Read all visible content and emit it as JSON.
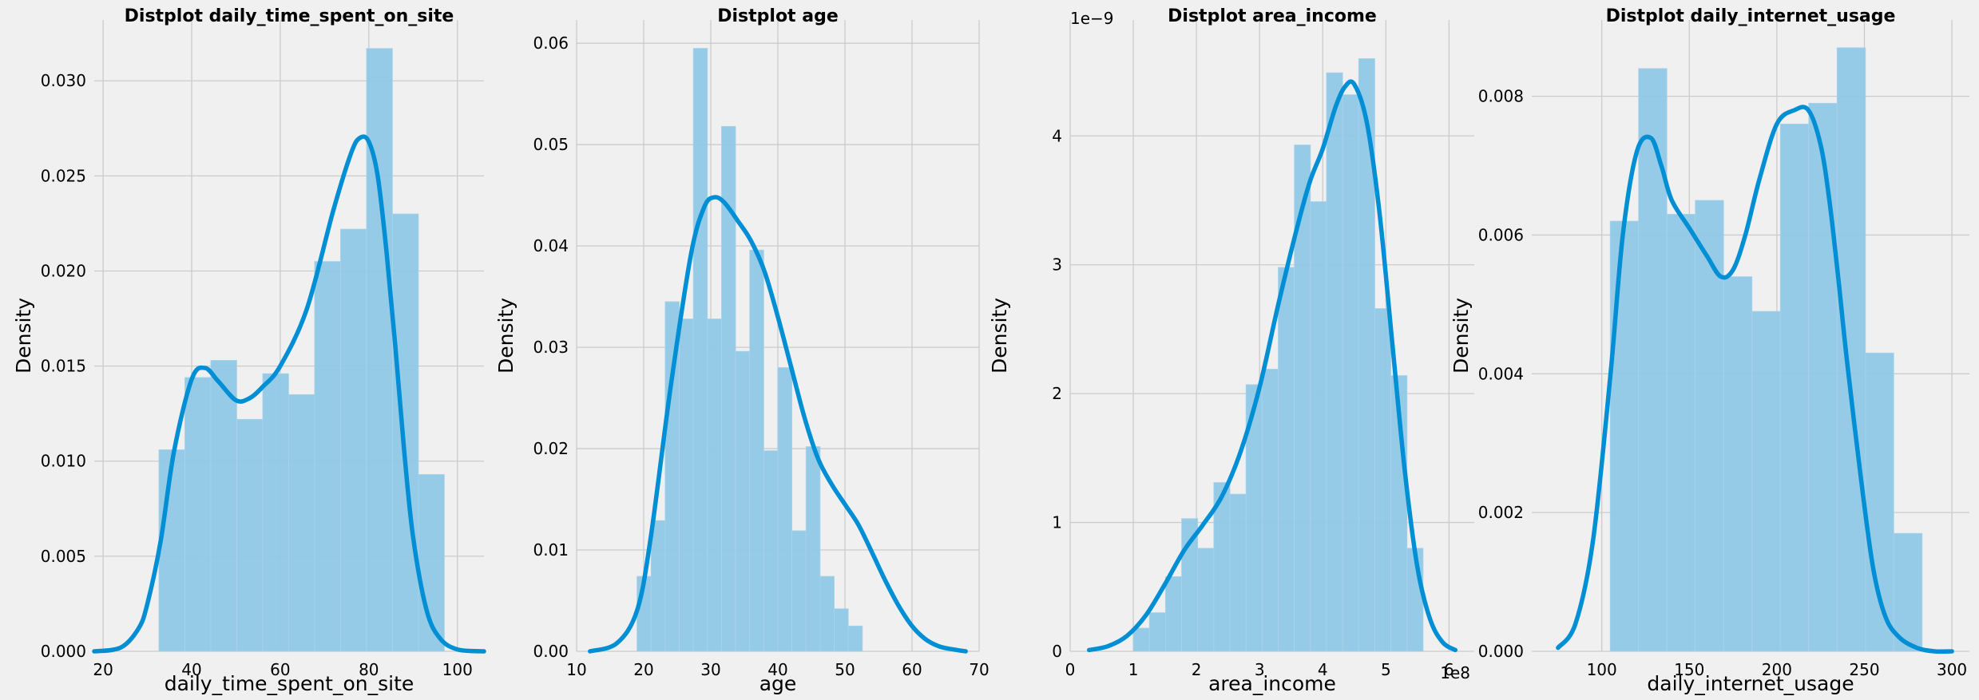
{
  "colors": {
    "bar": "#8fc8e6",
    "bar_edge": "#a9d3ea",
    "kde": "#008fd5",
    "grid": "#cbcbcb",
    "background": "#f0f0f0"
  },
  "chart_data": [
    {
      "type": "bar",
      "title": "Distplot daily_time_spent_on_site",
      "xlabel": "daily_time_spent_on_site",
      "ylabel": "Density",
      "xlim": [
        18,
        106
      ],
      "ylim": [
        0,
        0.0332
      ],
      "xticks": [
        20,
        40,
        60,
        80,
        100
      ],
      "yticks": [
        0.0,
        0.005,
        0.01,
        0.015,
        0.02,
        0.025,
        0.03
      ],
      "ytick_labels": [
        "0.000",
        "0.005",
        "0.010",
        "0.015",
        "0.020",
        "0.025",
        "0.030"
      ],
      "offset_text": "",
      "bins": {
        "start": 32.6,
        "width": 5.86,
        "heights": [
          0.0106,
          0.0144,
          0.0153,
          0.0122,
          0.0146,
          0.0135,
          0.0205,
          0.0222,
          0.0317,
          0.023,
          0.0093
        ]
      },
      "kde": {
        "x": [
          18,
          24,
          28,
          30,
          33,
          36,
          40,
          43,
          46,
          50,
          53,
          56,
          60,
          66,
          72,
          76,
          78,
          80,
          82,
          84,
          86,
          88,
          90,
          93,
          96,
          100,
          106
        ],
        "y": [
          0,
          0.0002,
          0.0012,
          0.0025,
          0.0058,
          0.0105,
          0.0143,
          0.0149,
          0.0142,
          0.0132,
          0.0133,
          0.0139,
          0.015,
          0.018,
          0.0232,
          0.0262,
          0.027,
          0.0268,
          0.025,
          0.021,
          0.016,
          0.0105,
          0.006,
          0.0022,
          0.0007,
          0.0001,
          0
        ]
      }
    },
    {
      "type": "bar",
      "title": "Distplot age",
      "xlabel": "age",
      "ylabel": "Density",
      "xlim": [
        10,
        70
      ],
      "ylim": [
        0,
        0.0623
      ],
      "xticks": [
        10,
        20,
        30,
        40,
        50,
        60,
        70
      ],
      "yticks": [
        0.0,
        0.01,
        0.02,
        0.03,
        0.04,
        0.05,
        0.06
      ],
      "ytick_labels": [
        "0.00",
        "0.01",
        "0.02",
        "0.03",
        "0.04",
        "0.05",
        "0.06"
      ],
      "offset_text": "",
      "bins": {
        "start": 19,
        "width": 2.1,
        "heights": [
          0.0074,
          0.0129,
          0.0345,
          0.0328,
          0.0595,
          0.0328,
          0.0518,
          0.0296,
          0.0396,
          0.0198,
          0.028,
          0.0119,
          0.0202,
          0.0074,
          0.0042,
          0.0025
        ]
      },
      "kde": {
        "x": [
          12,
          16,
          19,
          21,
          24,
          27,
          29,
          30.5,
          32,
          34,
          36,
          38,
          40,
          42,
          44,
          46,
          48,
          50,
          52,
          54,
          56,
          58,
          60,
          62,
          64,
          66,
          68
        ],
        "y": [
          0,
          0.0008,
          0.004,
          0.011,
          0.026,
          0.039,
          0.0438,
          0.0448,
          0.0443,
          0.0425,
          0.0405,
          0.0375,
          0.033,
          0.028,
          0.023,
          0.019,
          0.0165,
          0.0145,
          0.0125,
          0.0098,
          0.007,
          0.0045,
          0.0025,
          0.0012,
          0.0005,
          0.0002,
          0
        ]
      }
    },
    {
      "type": "bar",
      "title": "Distplot area_income",
      "xlabel": "area_income",
      "ylabel": "Density",
      "xlim": [
        0,
        6.4
      ],
      "ylim": [
        0,
        4.9
      ],
      "xticks": [
        0,
        1,
        2,
        3,
        4,
        5,
        6
      ],
      "yticks": [
        0,
        1,
        2,
        3,
        4
      ],
      "ytick_labels": [
        "0",
        "1",
        "2",
        "3",
        "4"
      ],
      "offset_text": "1e8",
      "y_offset_text": "1e−9",
      "bins": {
        "start": 1.0,
        "width": 0.255,
        "heights": [
          0.18,
          0.3,
          0.58,
          1.03,
          0.8,
          1.31,
          1.22,
          2.07,
          2.19,
          2.98,
          3.93,
          3.49,
          4.49,
          4.32,
          4.6,
          2.66,
          2.14,
          0.8
        ]
      },
      "kde": {
        "x": [
          0.3,
          0.6,
          0.9,
          1.2,
          1.5,
          1.8,
          2.1,
          2.4,
          2.7,
          3.0,
          3.3,
          3.6,
          3.8,
          4.0,
          4.2,
          4.35,
          4.5,
          4.7,
          4.9,
          5.1,
          5.3,
          5.5,
          5.7,
          5.9,
          6.1
        ],
        "y": [
          0.01,
          0.04,
          0.12,
          0.28,
          0.52,
          0.78,
          0.98,
          1.2,
          1.55,
          2.05,
          2.7,
          3.3,
          3.65,
          3.9,
          4.22,
          4.38,
          4.4,
          4.1,
          3.4,
          2.4,
          1.4,
          0.65,
          0.25,
          0.07,
          0.01
        ]
      }
    },
    {
      "type": "bar",
      "title": "Distplot daily_internet_usage",
      "xlabel": "daily_internet_usage",
      "ylabel": "Density",
      "xlim": [
        60,
        310
      ],
      "ylim": [
        0,
        0.0091
      ],
      "xticks": [
        100,
        150,
        200,
        250,
        300
      ],
      "yticks": [
        0.0,
        0.002,
        0.004,
        0.006,
        0.008
      ],
      "ytick_labels": [
        "0.000",
        "0.002",
        "0.004",
        "0.006",
        "0.008"
      ],
      "offset_text": "",
      "bins": {
        "start": 104.8,
        "width": 16.2,
        "heights": [
          0.0062,
          0.0084,
          0.0063,
          0.0065,
          0.0054,
          0.0049,
          0.0076,
          0.0079,
          0.0087,
          0.0043,
          0.0017
        ]
      },
      "kde": {
        "x": [
          75,
          85,
          95,
          105,
          112,
          120,
          128,
          134,
          140,
          150,
          160,
          168,
          175,
          182,
          190,
          200,
          210,
          218,
          225,
          230,
          235,
          240,
          248,
          255,
          262,
          270,
          280,
          290,
          300
        ],
        "y": [
          5e-05,
          0.0004,
          0.0016,
          0.004,
          0.006,
          0.0072,
          0.0074,
          0.007,
          0.0065,
          0.0061,
          0.0057,
          0.0054,
          0.0055,
          0.006,
          0.0068,
          0.0076,
          0.0078,
          0.0078,
          0.0073,
          0.0065,
          0.0054,
          0.0042,
          0.0025,
          0.0012,
          0.0005,
          0.0002,
          5e-05,
          0,
          0
        ]
      }
    }
  ]
}
